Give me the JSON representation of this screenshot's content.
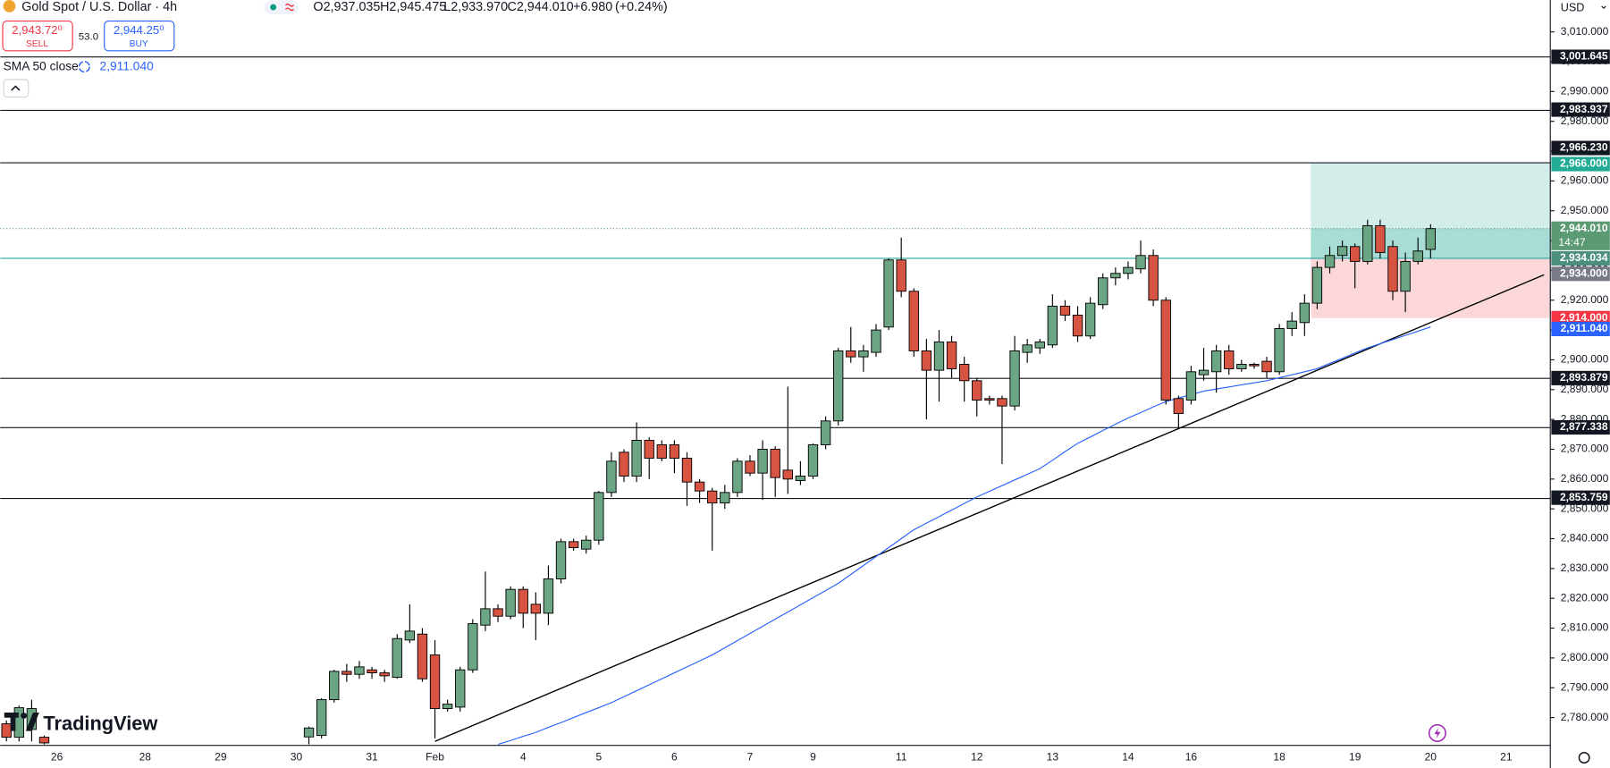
{
  "chart_data": {
    "type": "candlestick",
    "header": {
      "symbol": "Gold Spot / U.S. Dollar · 4h",
      "open": {
        "value": 2937.035,
        "label": "O2,937.035"
      },
      "high": {
        "value": 2945.475,
        "label": "H2,945.475"
      },
      "low": {
        "value": 2933.97,
        "label": "L2,933.970"
      },
      "close": {
        "value": 2944.01,
        "label": "C2,944.010"
      },
      "change": {
        "value": 6.98,
        "label": "+6.980"
      },
      "change_pct": {
        "value": 0.24,
        "label": "(+0.24%)"
      },
      "sell": {
        "value": 2943.72,
        "label": "2,943.72⁰",
        "caption": "SELL"
      },
      "spread": 53.0,
      "spread_label": "53.0",
      "buy": {
        "value": 2944.25,
        "label": "2,944.25⁰",
        "caption": "BUY"
      },
      "indicator": "SMA 50 close",
      "indicator_value": {
        "value": 2911.04,
        "label": "2,911.040"
      },
      "currency": "USD",
      "watermark": "TradingView"
    },
    "categories": [
      "",
      "",
      "",
      "",
      "26",
      null,
      null,
      null,
      null,
      null,
      null,
      "28",
      null,
      null,
      null,
      null,
      null,
      "29",
      null,
      null,
      null,
      null,
      null,
      "30",
      null,
      null,
      null,
      null,
      null,
      "31",
      null,
      null,
      null,
      null,
      "Feb",
      null,
      null,
      null,
      null,
      null,
      null,
      "4",
      null,
      null,
      null,
      null,
      null,
      "5",
      null,
      null,
      null,
      null,
      null,
      "6",
      null,
      null,
      null,
      null,
      null,
      "7",
      null,
      null,
      null,
      null,
      "9",
      null,
      null,
      null,
      null,
      null,
      null,
      "11",
      null,
      null,
      null,
      null,
      null,
      "12",
      null,
      null,
      null,
      null,
      null,
      "13",
      null,
      null,
      null,
      null,
      null,
      "14",
      null,
      null,
      null,
      null,
      "16",
      null,
      null,
      null,
      null,
      null,
      null,
      "18",
      null,
      null,
      null,
      null,
      null,
      "19",
      null,
      null,
      null,
      null,
      null,
      "20",
      null,
      null,
      null,
      null,
      null,
      "21",
      null,
      null,
      null
    ],
    "open": [
      2777.9,
      2773.4,
      2776,
      2773.4,
      null,
      null,
      null,
      null,
      null,
      null,
      null,
      null,
      null,
      null,
      null,
      null,
      null,
      null,
      null,
      null,
      null,
      null,
      null,
      null,
      2773.5,
      2774,
      2786,
      2795.5,
      2794.5,
      2796,
      2795,
      2793.5,
      2806,
      2808,
      2801,
      2783,
      2783.5,
      2796,
      2811,
      2816.5,
      2814,
      2823,
      2818,
      2815,
      2826.5,
      2839,
      2836.5,
      2839.5,
      2855.5,
      2869,
      2861,
      2873,
      2871.5,
      2871.5,
      2867,
      2859,
      2856,
      2852,
      2855.5,
      2866,
      2862,
      2870,
      2863,
      2859.5,
      2861,
      2871.5,
      2879.5,
      2903,
      2901,
      2902.5,
      2911,
      2933.5,
      2923,
      2903,
      2896.5,
      2906,
      2898.5,
      2893,
      2887,
      2887,
      2884.5,
      2902.5,
      2904,
      2905,
      2918,
      2915,
      2908,
      2918.5,
      2927.5,
      2929,
      2930.5,
      2935,
      2920,
      2887,
      2886.5,
      2895,
      2896,
      2903,
      2897,
      2898.5,
      2899.5,
      2896,
      2910.5,
      2912.5,
      2919,
      2931,
      2935,
      2938,
      2933,
      2945,
      2938,
      2923,
      2933,
      2937.035,
      null,
      null,
      null,
      null,
      null,
      null,
      null,
      null,
      null
    ],
    "high": [
      2779,
      2784,
      2786,
      2774,
      null,
      null,
      null,
      null,
      null,
      null,
      null,
      null,
      null,
      null,
      null,
      null,
      null,
      null,
      null,
      null,
      null,
      null,
      null,
      null,
      2777,
      2786.5,
      2796,
      2798,
      2799,
      2797,
      2796,
      2808,
      2818,
      2810,
      2806,
      2786,
      2797,
      2813,
      2829,
      2818,
      2824,
      2824,
      2822,
      2831,
      2840,
      2840,
      2841,
      2856,
      2869,
      2870,
      2879,
      2874,
      2873,
      2873,
      2869,
      2860,
      2857,
      2858,
      2867,
      2868,
      2873,
      2871,
      2891,
      2866,
      2872,
      2881,
      2904,
      2911,
      2905,
      2912,
      2934,
      2941,
      2924,
      2907,
      2910,
      2908,
      2901,
      2894,
      2888,
      2888,
      2908,
      2907,
      2907,
      2922,
      2920,
      2918,
      2921,
      2929,
      2931,
      2933,
      2940,
      2937,
      2921,
      2888,
      2898,
      2904,
      2905,
      2905,
      2900,
      2899,
      2901,
      2912,
      2916,
      2922,
      2933,
      2938,
      2940,
      2939,
      2947,
      2947,
      2940,
      2936,
      2941,
      2945.475,
      null,
      null,
      null,
      null,
      null,
      null,
      null,
      null,
      null
    ],
    "low": [
      2772,
      2772,
      2772,
      2770,
      null,
      null,
      null,
      null,
      null,
      null,
      null,
      null,
      null,
      null,
      null,
      null,
      null,
      null,
      null,
      null,
      null,
      null,
      null,
      null,
      2771,
      2773,
      2785,
      2792,
      2793,
      2793,
      2792,
      2793,
      2805,
      2792,
      2773,
      2782,
      2782,
      2795,
      2809,
      2812,
      2813,
      2810,
      2806,
      2811,
      2825,
      2836,
      2835,
      2838,
      2854,
      2859,
      2859,
      2860,
      2866,
      2862,
      2851,
      2852,
      2836,
      2850,
      2854,
      2861,
      2853,
      2854,
      2855,
      2858,
      2860,
      2870,
      2878,
      2899,
      2896,
      2901,
      2910,
      2921,
      2901,
      2880,
      2886,
      2894,
      2886,
      2881,
      2885,
      2865,
      2883,
      2899,
      2902,
      2904,
      2913,
      2906,
      2907,
      2917,
      2925,
      2927,
      2929,
      2918,
      2885,
      2877,
      2885,
      2893,
      2889,
      2895,
      2896,
      2897,
      2894,
      2895,
      2908,
      2908,
      2917,
      2929,
      2933,
      2924,
      2932,
      2934,
      2920,
      2916,
      2932,
      2933.97,
      null,
      null,
      null,
      null,
      null,
      null,
      null,
      null,
      null
    ],
    "close": [
      2773.4,
      2783.3,
      2783,
      2771.5,
      null,
      null,
      null,
      null,
      null,
      null,
      null,
      null,
      null,
      null,
      null,
      null,
      null,
      null,
      null,
      null,
      null,
      null,
      null,
      null,
      2776.5,
      2786,
      2795.5,
      2794.5,
      2797,
      2795,
      2794,
      2806.5,
      2809,
      2793,
      2783,
      2784.5,
      2796,
      2811.5,
      2816.5,
      2814,
      2823,
      2815,
      2815,
      2826.5,
      2839,
      2837,
      2839.5,
      2855.5,
      2866,
      2861,
      2873,
      2867,
      2867,
      2867,
      2859,
      2856,
      2852,
      2855.5,
      2866,
      2862,
      2870,
      2860.5,
      2860,
      2861,
      2871.5,
      2879.5,
      2903,
      2901,
      2903,
      2910,
      2933.5,
      2923,
      2903,
      2896.5,
      2906,
      2897,
      2893,
      2886.5,
      2886.5,
      2884.5,
      2903,
      2905,
      2906,
      2918,
      2915,
      2908,
      2919,
      2927.5,
      2929,
      2931,
      2935,
      2920,
      2886.5,
      2882,
      2896,
      2896.5,
      2903,
      2897,
      2898.5,
      2898,
      2896,
      2910.5,
      2913,
      2919,
      2931,
      2935,
      2938,
      2933,
      2945,
      2936,
      2923,
      2933,
      2936.5,
      2944.01,
      null,
      null,
      null,
      null,
      null,
      null,
      null,
      null,
      null
    ],
    "up_color": "#6ba583",
    "down_color": "#d75442",
    "wick_color": "#000000",
    "sma": {
      "name": "SMA 50 close",
      "color": "#2962ff",
      "values": [
        null,
        null,
        null,
        null,
        null,
        null,
        null,
        null,
        null,
        null,
        null,
        null,
        null,
        null,
        null,
        null,
        null,
        null,
        null,
        null,
        null,
        null,
        null,
        null,
        null,
        null,
        null,
        null,
        null,
        null,
        null,
        null,
        null,
        null,
        null,
        null,
        null,
        null,
        null,
        2771,
        2772.3,
        2773.7,
        2775,
        2776.7,
        2778.3,
        2780,
        2781.7,
        2783.3,
        2785,
        2787,
        2789,
        2791,
        2793,
        2795,
        2797,
        2799,
        2801,
        2803.4,
        2805.8,
        2808.2,
        2810.6,
        2813,
        2815.4,
        2817.8,
        2820.2,
        2822.6,
        2825,
        2828,
        2831,
        2834,
        2837,
        2840,
        2843,
        2845.2,
        2847.4,
        2849.6,
        2851.8,
        2854,
        2855.9,
        2857.8,
        2859.7,
        2861.6,
        2863.5,
        2866.3,
        2869.2,
        2872,
        2874.1,
        2876.3,
        2878.4,
        2880.5,
        2882.3,
        2884.2,
        2886,
        2887.2,
        2888.3,
        2889.5,
        2890.2,
        2890.9,
        2891.6,
        2892.3,
        2893,
        2894,
        2895,
        2896,
        2897,
        2898.8,
        2900.5,
        2902.3,
        2904,
        2905.4,
        2906.8,
        2908.2,
        2909.6,
        2911.04,
        null,
        null,
        null,
        null,
        null,
        null,
        null,
        null,
        null
      ]
    },
    "trendline": {
      "color": "#000000",
      "x": [
        34,
        122
      ],
      "y": [
        2772,
        2928.5
      ]
    },
    "levels": [
      {
        "value": 3001.645,
        "label": "3,001.645"
      },
      {
        "value": 2983.937,
        "label": "2,983.937"
      },
      {
        "value": 2966.23,
        "label": "2,966.230"
      },
      {
        "value": 2893.879,
        "label": "2,893.879"
      },
      {
        "value": 2877.338,
        "label": "2,877.338"
      },
      {
        "value": 2853.759,
        "label": "2,853.759"
      }
    ],
    "level_color": "#131722",
    "support_line": {
      "value": 2934.034,
      "label": "2,934.034",
      "color": "#26a69a"
    },
    "position": {
      "start": 104,
      "target": {
        "value": 2966.0,
        "label": "2,966.000"
      },
      "entry": {
        "value": 2934.0,
        "label": "2,934.000"
      },
      "stop": {
        "value": 2914.0,
        "label": "2,914.000"
      },
      "profit_color": "#22ab94",
      "loss_color": "#f23645"
    },
    "last_price": {
      "value": 2944.01,
      "label": "2,944.010",
      "countdown": "14:47",
      "color": "#5b9a73"
    },
    "ylim": [
      2771.0,
      3020.7
    ],
    "yticks": [
      {
        "value": 2780,
        "label": "2,780.000"
      },
      {
        "value": 2790,
        "label": "2,790.000"
      },
      {
        "value": 2800,
        "label": "2,800.000"
      },
      {
        "value": 2810,
        "label": "2,810.000"
      },
      {
        "value": 2820,
        "label": "2,820.000"
      },
      {
        "value": 2830,
        "label": "2,830.000"
      },
      {
        "value": 2840,
        "label": "2,840.000"
      },
      {
        "value": 2850,
        "label": "2,850.000"
      },
      {
        "value": 2860,
        "label": "2,860.000"
      },
      {
        "value": 2870,
        "label": "2,870.000"
      },
      {
        "value": 2880,
        "label": "2,880.000"
      },
      {
        "value": 2890,
        "label": "2,890.000"
      },
      {
        "value": 2900,
        "label": "2,900.000"
      },
      {
        "value": 2910,
        "label": "2,910.000"
      },
      {
        "value": 2920,
        "label": "2,920.000"
      },
      {
        "value": 2930,
        "label": "2,930.000"
      },
      {
        "value": 2940,
        "label": "2,940.000"
      },
      {
        "value": 2950,
        "label": "2,950.000"
      },
      {
        "value": 2960,
        "label": "2,960.000"
      },
      {
        "value": 2970,
        "label": "2,970.000"
      },
      {
        "value": 2980,
        "label": "2,980.000"
      },
      {
        "value": 2990,
        "label": "2,990.000"
      },
      {
        "value": 3000,
        "label": "3,000.000"
      },
      {
        "value": 3010,
        "label": "3,010.000"
      }
    ],
    "grid": false
  }
}
